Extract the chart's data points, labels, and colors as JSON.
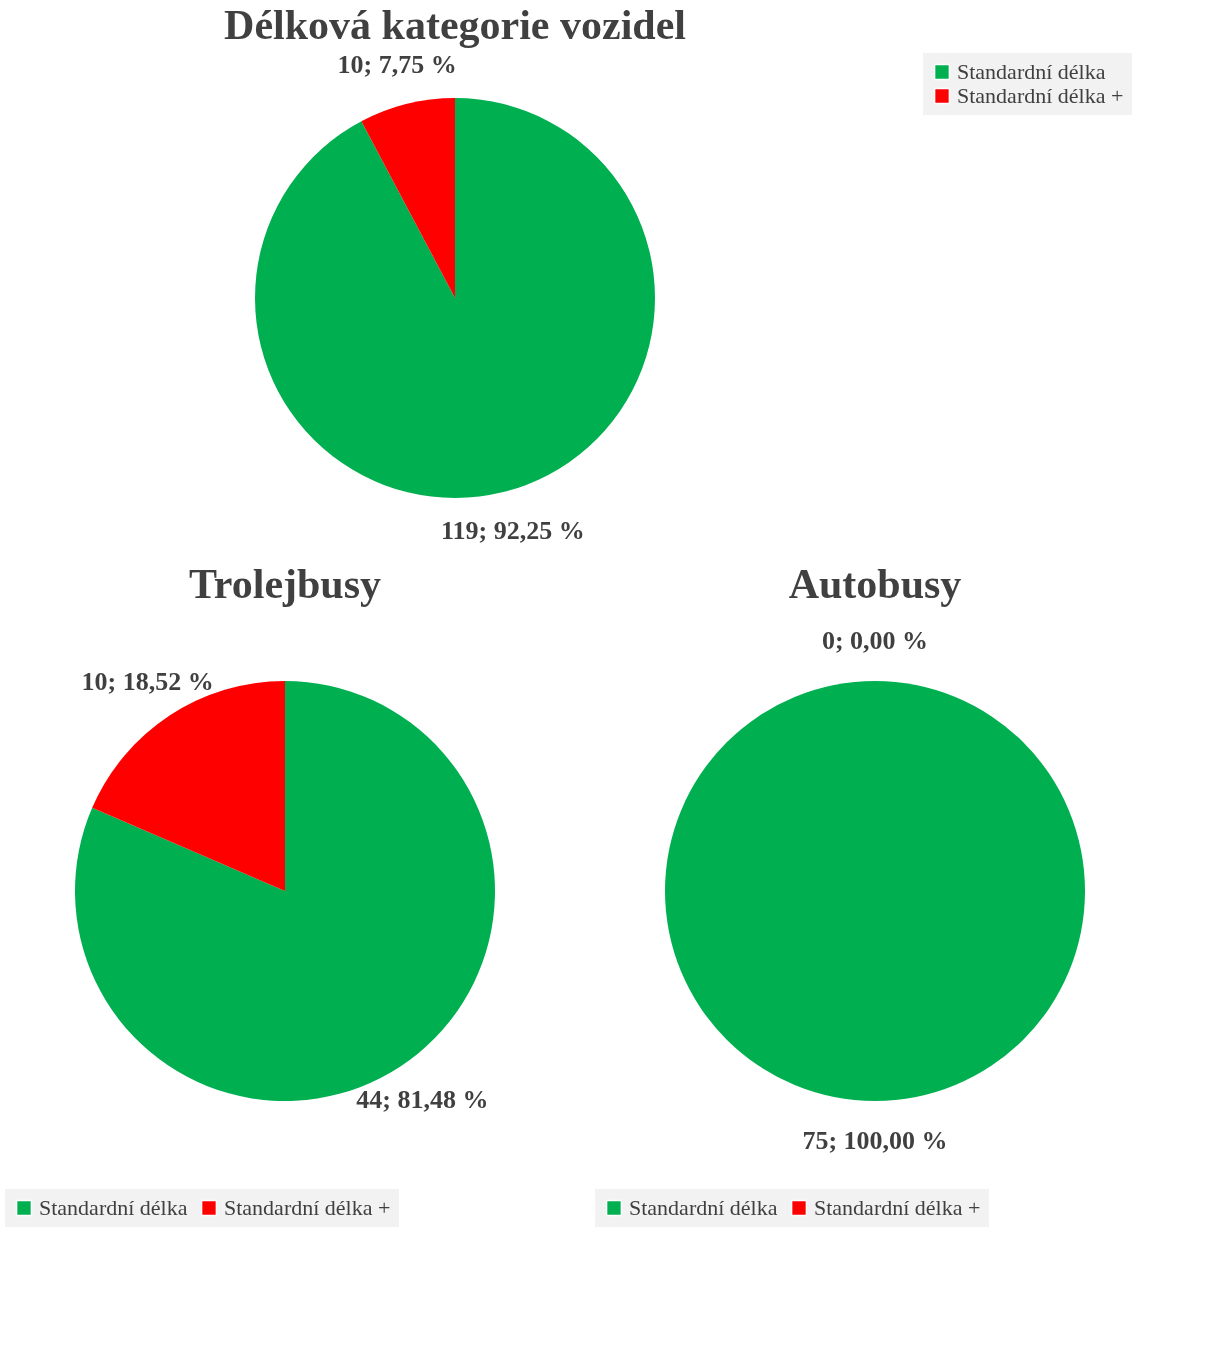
{
  "chart_data": [
    {
      "type": "pie",
      "title": "Délková kategorie vozidel",
      "categories": [
        "Standardní délka",
        "Standardní délka +"
      ],
      "values": [
        119,
        10
      ],
      "colors": [
        "#00b050",
        "#ff0000"
      ],
      "value_labels": [
        "119; 92,25 %",
        "10; 7,75 %"
      ],
      "legend": "right"
    },
    {
      "type": "pie",
      "title": "Trolejbusy",
      "categories": [
        "Standardní délka",
        "Standardní délka +"
      ],
      "values": [
        44,
        10
      ],
      "colors": [
        "#00b050",
        "#ff0000"
      ],
      "value_labels": [
        "44; 81,48 %",
        "10; 18,52 %"
      ],
      "legend": "bottom"
    },
    {
      "type": "pie",
      "title": "Autobusy",
      "categories": [
        "Standardní délka",
        "Standardní délka +"
      ],
      "values": [
        75,
        0
      ],
      "colors": [
        "#00b050",
        "#ff0000"
      ],
      "value_labels": [
        "75; 100,00 %",
        "0; 0,00 %"
      ],
      "legend": "bottom"
    }
  ]
}
